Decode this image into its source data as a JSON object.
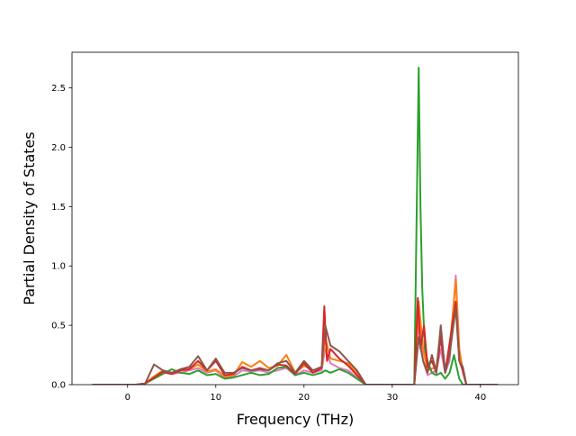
{
  "chart_data": {
    "type": "line",
    "title": "",
    "xlabel": "Frequency (THz)",
    "ylabel": "Partial Density of States",
    "xlim": [
      -6.3,
      44.3
    ],
    "ylim": [
      0,
      2.8
    ],
    "xticks": [
      0,
      10,
      20,
      30,
      40
    ],
    "yticks": [
      0.0,
      0.5,
      1.0,
      1.5,
      2.0,
      2.5
    ],
    "xtick_labels": [
      "0",
      "10",
      "20",
      "30",
      "40"
    ],
    "ytick_labels": [
      "0.0",
      "0.5",
      "1.0",
      "1.5",
      "2.0",
      "2.5"
    ],
    "grid": false,
    "legend": "none",
    "series": [
      {
        "color": "#e377c2",
        "points": [
          [
            -4,
            0
          ],
          [
            1,
            0
          ],
          [
            2,
            0.01
          ],
          [
            3,
            0.06
          ],
          [
            4,
            0.1
          ],
          [
            5,
            0.09
          ],
          [
            6,
            0.1
          ],
          [
            7,
            0.12
          ],
          [
            8,
            0.14
          ],
          [
            9,
            0.1
          ],
          [
            10,
            0.12
          ],
          [
            11,
            0.06
          ],
          [
            12,
            0.07
          ],
          [
            13,
            0.12
          ],
          [
            14,
            0.11
          ],
          [
            15,
            0.12
          ],
          [
            16,
            0.1
          ],
          [
            17,
            0.12
          ],
          [
            18,
            0.14
          ],
          [
            19,
            0.08
          ],
          [
            20,
            0.12
          ],
          [
            21,
            0.1
          ],
          [
            22,
            0.12
          ],
          [
            22.4,
            0.3
          ],
          [
            23,
            0.18
          ],
          [
            24,
            0.14
          ],
          [
            25,
            0.12
          ],
          [
            26,
            0.06
          ],
          [
            27,
            0
          ],
          [
            32.5,
            0
          ],
          [
            33,
            0.55
          ],
          [
            33.5,
            0.2
          ],
          [
            34,
            0.08
          ],
          [
            35,
            0.12
          ],
          [
            35.5,
            0.3
          ],
          [
            36,
            0.1
          ],
          [
            36.5,
            0.2
          ],
          [
            37.2,
            0.92
          ],
          [
            37.6,
            0.3
          ],
          [
            38,
            0.1
          ],
          [
            38.4,
            0
          ],
          [
            42,
            0
          ]
        ]
      },
      {
        "color": "#ff7f0e",
        "points": [
          [
            -4,
            0
          ],
          [
            1,
            0
          ],
          [
            2,
            0.01
          ],
          [
            3,
            0.07
          ],
          [
            4,
            0.12
          ],
          [
            5,
            0.1
          ],
          [
            6,
            0.12
          ],
          [
            7,
            0.13
          ],
          [
            8,
            0.17
          ],
          [
            9,
            0.11
          ],
          [
            10,
            0.13
          ],
          [
            11,
            0.07
          ],
          [
            12,
            0.08
          ],
          [
            13,
            0.19
          ],
          [
            14,
            0.15
          ],
          [
            15,
            0.2
          ],
          [
            16,
            0.14
          ],
          [
            17,
            0.16
          ],
          [
            18,
            0.25
          ],
          [
            19,
            0.1
          ],
          [
            20,
            0.16
          ],
          [
            21,
            0.12
          ],
          [
            22,
            0.14
          ],
          [
            22.4,
            0.4
          ],
          [
            23,
            0.22
          ],
          [
            24,
            0.2
          ],
          [
            25,
            0.18
          ],
          [
            26,
            0.1
          ],
          [
            27,
            0
          ],
          [
            32.5,
            0
          ],
          [
            33,
            0.7
          ],
          [
            33.5,
            0.3
          ],
          [
            34,
            0.12
          ],
          [
            35,
            0.15
          ],
          [
            35.5,
            0.45
          ],
          [
            36,
            0.12
          ],
          [
            36.5,
            0.3
          ],
          [
            37.2,
            0.88
          ],
          [
            37.6,
            0.3
          ],
          [
            38,
            0.12
          ],
          [
            38.4,
            0
          ],
          [
            42,
            0
          ]
        ]
      },
      {
        "color": "#2ca02c",
        "points": [
          [
            -4,
            0
          ],
          [
            1,
            0
          ],
          [
            2,
            0.01
          ],
          [
            3,
            0.05
          ],
          [
            4,
            0.09
          ],
          [
            5,
            0.13
          ],
          [
            6,
            0.1
          ],
          [
            7,
            0.09
          ],
          [
            8,
            0.12
          ],
          [
            9,
            0.08
          ],
          [
            10,
            0.09
          ],
          [
            11,
            0.05
          ],
          [
            12,
            0.06
          ],
          [
            13,
            0.08
          ],
          [
            14,
            0.1
          ],
          [
            15,
            0.08
          ],
          [
            16,
            0.09
          ],
          [
            17,
            0.14
          ],
          [
            18,
            0.15
          ],
          [
            19,
            0.08
          ],
          [
            20,
            0.1
          ],
          [
            21,
            0.08
          ],
          [
            22,
            0.1
          ],
          [
            22.4,
            0.12
          ],
          [
            23,
            0.1
          ],
          [
            24,
            0.13
          ],
          [
            25,
            0.1
          ],
          [
            26,
            0.05
          ],
          [
            27,
            0
          ],
          [
            32.5,
            0
          ],
          [
            33,
            2.67
          ],
          [
            33.2,
            1.5
          ],
          [
            33.4,
            0.81
          ],
          [
            33.7,
            0.3
          ],
          [
            34,
            0.2
          ],
          [
            34.5,
            0.1
          ],
          [
            35,
            0.08
          ],
          [
            35.5,
            0.1
          ],
          [
            36,
            0.05
          ],
          [
            36.5,
            0.1
          ],
          [
            37,
            0.25
          ],
          [
            37.3,
            0.15
          ],
          [
            37.6,
            0.05
          ],
          [
            38,
            0
          ],
          [
            42,
            0
          ]
        ]
      },
      {
        "color": "#d62728",
        "points": [
          [
            -4,
            0
          ],
          [
            1,
            0
          ],
          [
            2,
            0.01
          ],
          [
            3,
            0.06
          ],
          [
            4,
            0.11
          ],
          [
            5,
            0.09
          ],
          [
            6,
            0.12
          ],
          [
            7,
            0.13
          ],
          [
            8,
            0.2
          ],
          [
            9,
            0.12
          ],
          [
            10,
            0.2
          ],
          [
            11,
            0.08
          ],
          [
            12,
            0.09
          ],
          [
            13,
            0.15
          ],
          [
            14,
            0.12
          ],
          [
            15,
            0.14
          ],
          [
            16,
            0.12
          ],
          [
            17,
            0.17
          ],
          [
            18,
            0.16
          ],
          [
            19,
            0.09
          ],
          [
            20,
            0.18
          ],
          [
            21,
            0.1
          ],
          [
            22,
            0.14
          ],
          [
            22.3,
            0.66
          ],
          [
            22.6,
            0.2
          ],
          [
            23,
            0.3
          ],
          [
            24,
            0.22
          ],
          [
            25,
            0.16
          ],
          [
            26,
            0.08
          ],
          [
            27,
            0
          ],
          [
            32.5,
            0
          ],
          [
            32.9,
            0.73
          ],
          [
            33.2,
            0.3
          ],
          [
            33.6,
            0.5
          ],
          [
            34,
            0.15
          ],
          [
            34.5,
            0.2
          ],
          [
            35,
            0.1
          ],
          [
            35.5,
            0.4
          ],
          [
            36,
            0.1
          ],
          [
            36.5,
            0.35
          ],
          [
            37.2,
            0.7
          ],
          [
            37.6,
            0.2
          ],
          [
            38,
            0.12
          ],
          [
            38.4,
            0
          ],
          [
            42,
            0
          ]
        ]
      },
      {
        "color": "#8c564b",
        "points": [
          [
            -4,
            0
          ],
          [
            1,
            0
          ],
          [
            2,
            0.01
          ],
          [
            3,
            0.17
          ],
          [
            4,
            0.12
          ],
          [
            5,
            0.1
          ],
          [
            6,
            0.13
          ],
          [
            7,
            0.15
          ],
          [
            8,
            0.24
          ],
          [
            9,
            0.12
          ],
          [
            10,
            0.22
          ],
          [
            11,
            0.1
          ],
          [
            12,
            0.1
          ],
          [
            13,
            0.14
          ],
          [
            14,
            0.12
          ],
          [
            15,
            0.13
          ],
          [
            16,
            0.12
          ],
          [
            17,
            0.18
          ],
          [
            18,
            0.2
          ],
          [
            19,
            0.1
          ],
          [
            20,
            0.2
          ],
          [
            21,
            0.12
          ],
          [
            22,
            0.15
          ],
          [
            22.4,
            0.5
          ],
          [
            23,
            0.33
          ],
          [
            24,
            0.28
          ],
          [
            25,
            0.2
          ],
          [
            26,
            0.12
          ],
          [
            27,
            0
          ],
          [
            32.5,
            0
          ],
          [
            33,
            0.4
          ],
          [
            33.5,
            0.2
          ],
          [
            34,
            0.1
          ],
          [
            34.5,
            0.25
          ],
          [
            35,
            0.1
          ],
          [
            35.5,
            0.5
          ],
          [
            36,
            0.1
          ],
          [
            36.5,
            0.25
          ],
          [
            37.2,
            0.65
          ],
          [
            37.6,
            0.2
          ],
          [
            38,
            0.15
          ],
          [
            38.4,
            0
          ],
          [
            42,
            0
          ]
        ]
      }
    ]
  }
}
